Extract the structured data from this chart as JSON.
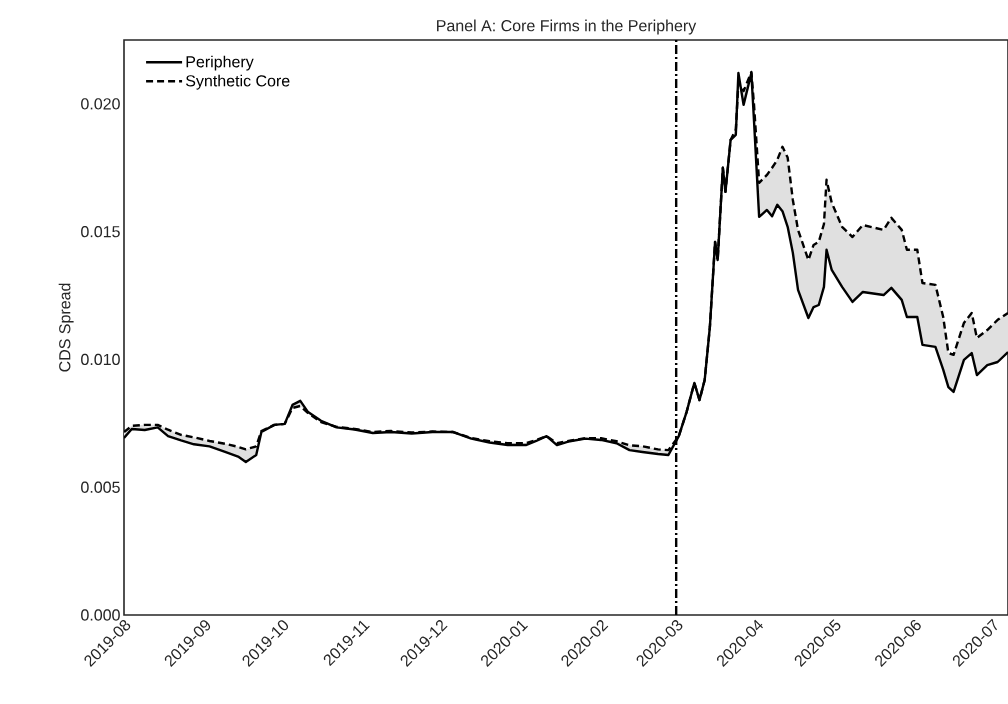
{
  "chart_data": {
    "type": "line",
    "title": "Panel A: Core Firms in the Periphery",
    "ylabel": "CDS Spread",
    "xlim": [
      "2019-08-01",
      "2020-07-07"
    ],
    "ylim": [
      0,
      0.0225
    ],
    "xticks": [
      {
        "value": "2019-08-01",
        "label": "2019-08"
      },
      {
        "value": "2019-09-01",
        "label": "2019-09"
      },
      {
        "value": "2019-10-01",
        "label": "2019-10"
      },
      {
        "value": "2019-11-01",
        "label": "2019-11"
      },
      {
        "value": "2019-12-01",
        "label": "2019-12"
      },
      {
        "value": "2020-01-01",
        "label": "2020-01"
      },
      {
        "value": "2020-02-01",
        "label": "2020-02"
      },
      {
        "value": "2020-03-01",
        "label": "2020-03"
      },
      {
        "value": "2020-04-01",
        "label": "2020-04"
      },
      {
        "value": "2020-05-01",
        "label": "2020-05"
      },
      {
        "value": "2020-06-01",
        "label": "2020-06"
      },
      {
        "value": "2020-07-01",
        "label": "2020-07"
      }
    ],
    "yticks": [
      {
        "value": 0,
        "label": "0.000"
      },
      {
        "value": 0.005,
        "label": "0.005"
      },
      {
        "value": 0.01,
        "label": "0.010"
      },
      {
        "value": 0.015,
        "label": "0.015"
      },
      {
        "value": 0.02,
        "label": "0.020"
      }
    ],
    "x": [
      "2019-08-01",
      "2019-08-04",
      "2019-08-09",
      "2019-08-14",
      "2019-08-18",
      "2019-08-23",
      "2019-08-28",
      "2019-09-03",
      "2019-09-09",
      "2019-09-14",
      "2019-09-17",
      "2019-09-21",
      "2019-09-23",
      "2019-09-28",
      "2019-10-02",
      "2019-10-05",
      "2019-10-08",
      "2019-10-11",
      "2019-10-16",
      "2019-10-22",
      "2019-10-29",
      "2019-11-05",
      "2019-11-12",
      "2019-11-20",
      "2019-11-28",
      "2019-12-06",
      "2019-12-13",
      "2019-12-20",
      "2019-12-27",
      "2020-01-03",
      "2020-01-07",
      "2020-01-11",
      "2020-01-15",
      "2020-01-20",
      "2020-01-26",
      "2020-02-01",
      "2020-02-07",
      "2020-02-12",
      "2020-02-17",
      "2020-02-23",
      "2020-02-27",
      "2020-03-02",
      "2020-03-05",
      "2020-03-08",
      "2020-03-10",
      "2020-03-12",
      "2020-03-14",
      "2020-03-16",
      "2020-03-17",
      "2020-03-19",
      "2020-03-20",
      "2020-03-22",
      "2020-03-24",
      "2020-03-25",
      "2020-03-27",
      "2020-03-30",
      "2020-03-31",
      "2020-04-02",
      "2020-04-05",
      "2020-04-07",
      "2020-04-09",
      "2020-04-11",
      "2020-04-13",
      "2020-04-15",
      "2020-04-17",
      "2020-04-21",
      "2020-04-23",
      "2020-04-25",
      "2020-04-27",
      "2020-04-28",
      "2020-04-30",
      "2020-05-04",
      "2020-05-08",
      "2020-05-12",
      "2020-05-20",
      "2020-05-23",
      "2020-05-27",
      "2020-05-29",
      "2020-06-02",
      "2020-06-04",
      "2020-06-09",
      "2020-06-12",
      "2020-06-14",
      "2020-06-16",
      "2020-06-20",
      "2020-06-23",
      "2020-06-25",
      "2020-06-29",
      "2020-07-03",
      "2020-07-07"
    ],
    "series": [
      {
        "name": "Periphery",
        "color": "#000000",
        "line_style": "solid",
        "values": [
          0.00693,
          0.00728,
          0.00724,
          0.00734,
          0.007,
          0.00683,
          0.00668,
          0.0066,
          0.00638,
          0.0062,
          0.00599,
          0.00626,
          0.00716,
          0.00744,
          0.00748,
          0.00822,
          0.00838,
          0.00794,
          0.0076,
          0.00734,
          0.00726,
          0.00712,
          0.00716,
          0.0071,
          0.00716,
          0.00716,
          0.0069,
          0.00675,
          0.00665,
          0.00665,
          0.00681,
          0.007,
          0.00665,
          0.0068,
          0.0069,
          0.00685,
          0.00672,
          0.00645,
          0.00638,
          0.0063,
          0.00626,
          0.007,
          0.00794,
          0.00908,
          0.00841,
          0.0092,
          0.01127,
          0.0146,
          0.01389,
          0.0175,
          0.01656,
          0.01859,
          0.01879,
          0.02121,
          0.01996,
          0.02121,
          0.01937,
          0.01558,
          0.01585,
          0.0156,
          0.01605,
          0.0158,
          0.01519,
          0.01417,
          0.01272,
          0.01162,
          0.01205,
          0.01213,
          0.01284,
          0.01429,
          0.0135,
          0.01284,
          0.01225,
          0.01264,
          0.01252,
          0.0128,
          0.01233,
          0.01166,
          0.01166,
          0.01057,
          0.01049,
          0.0096,
          0.00892,
          0.00873,
          0.00998,
          0.01025,
          0.00939,
          0.00978,
          0.0099,
          0.01029
        ]
      },
      {
        "name": "Synthetic Core",
        "color": "#000000",
        "line_style": "dashed",
        "lower": [
          0.00693,
          0.00728,
          0.00724,
          0.00734,
          0.007,
          0.00683,
          0.00668,
          0.0066,
          0.00638,
          0.0062,
          0.00599,
          0.00626,
          0.00716,
          0.00744,
          0.00748,
          0.00822,
          0.00838,
          0.00794,
          0.0076,
          0.00734,
          0.00726,
          0.00712,
          0.00716,
          0.0071,
          0.00716,
          0.00716,
          0.0069,
          0.00675,
          0.00665,
          0.00665,
          0.00681,
          0.007,
          0.00665,
          0.0068,
          0.0069,
          0.00685,
          0.00672,
          0.00645,
          0.00638,
          0.0063,
          0.00626,
          0.007,
          0.00794,
          0.00908,
          0.00841,
          0.0092,
          0.01127,
          0.0146,
          0.01389,
          0.0175,
          0.01656,
          0.01859,
          0.01879,
          0.02121,
          0.01996,
          0.02121,
          0.01937,
          0.01558,
          0.01585,
          0.0156,
          0.01605,
          0.0158,
          0.01519,
          0.01417,
          0.01272,
          0.01162,
          0.01205,
          0.01213,
          0.01284,
          0.01429,
          0.0135,
          0.01284,
          0.01225,
          0.01264,
          0.01252,
          0.0128,
          0.01233,
          0.01166,
          0.01166,
          0.01057,
          0.01049,
          0.0096,
          0.00892,
          0.00873,
          0.00998,
          0.01025,
          0.00939,
          0.00978,
          0.0099,
          0.01029
        ],
        "upper": [
          0.00716,
          0.0074,
          0.00744,
          0.00744,
          0.00725,
          0.00705,
          0.00695,
          0.00681,
          0.0067,
          0.00658,
          0.00648,
          0.0066,
          0.0072,
          0.00744,
          0.00748,
          0.0081,
          0.00818,
          0.0079,
          0.00755,
          0.00736,
          0.00728,
          0.00716,
          0.0072,
          0.00714,
          0.00718,
          0.00716,
          0.00692,
          0.0068,
          0.00672,
          0.00672,
          0.00685,
          0.007,
          0.00672,
          0.00682,
          0.00692,
          0.00692,
          0.0068,
          0.00664,
          0.0066,
          0.00648,
          0.00645,
          0.007,
          0.00794,
          0.00908,
          0.00841,
          0.0092,
          0.01127,
          0.0146,
          0.01389,
          0.0175,
          0.01656,
          0.01859,
          0.019,
          0.02082,
          0.0205,
          0.02125,
          0.02,
          0.01691,
          0.01722,
          0.0175,
          0.01781,
          0.01832,
          0.0179,
          0.01624,
          0.01507,
          0.01389,
          0.01448,
          0.0146,
          0.0153,
          0.01703,
          0.01613,
          0.01519,
          0.01479,
          0.01526,
          0.01507,
          0.01554,
          0.01507,
          0.01429,
          0.01429,
          0.01299,
          0.01292,
          0.01166,
          0.01025,
          0.01018,
          0.01143,
          0.01182,
          0.01084,
          0.01115,
          0.01155,
          0.01182
        ],
        "values": [
          0.00716,
          0.0074,
          0.00744,
          0.00744,
          0.00725,
          0.00705,
          0.00695,
          0.00681,
          0.0067,
          0.00658,
          0.00648,
          0.0066,
          0.0072,
          0.00744,
          0.00748,
          0.0081,
          0.00818,
          0.0079,
          0.00755,
          0.00736,
          0.00728,
          0.00716,
          0.0072,
          0.00714,
          0.00718,
          0.00716,
          0.00692,
          0.0068,
          0.00672,
          0.00672,
          0.00685,
          0.007,
          0.00672,
          0.00682,
          0.00692,
          0.00692,
          0.0068,
          0.00664,
          0.0066,
          0.00648,
          0.00645,
          0.007,
          0.00794,
          0.00908,
          0.00841,
          0.0092,
          0.01127,
          0.0146,
          0.01389,
          0.0175,
          0.01656,
          0.01859,
          0.019,
          0.02082,
          0.0205,
          0.02125,
          0.02,
          0.01691,
          0.01722,
          0.0175,
          0.01781,
          0.01832,
          0.0179,
          0.01624,
          0.01507,
          0.01389,
          0.01448,
          0.0146,
          0.0153,
          0.01703,
          0.01613,
          0.01519,
          0.01479,
          0.01526,
          0.01507,
          0.01554,
          0.01507,
          0.01429,
          0.01429,
          0.01299,
          0.01292,
          0.01166,
          0.01025,
          0.01018,
          0.01143,
          0.01182,
          0.01084,
          0.01115,
          0.01155,
          0.01182
        ]
      }
    ],
    "ref_lines": [
      {
        "axis": "x",
        "value": "2020-03-01",
        "color": "#000000",
        "line_style": "dashdot"
      }
    ],
    "legend": "top left",
    "grid": false,
    "marker": "none"
  }
}
